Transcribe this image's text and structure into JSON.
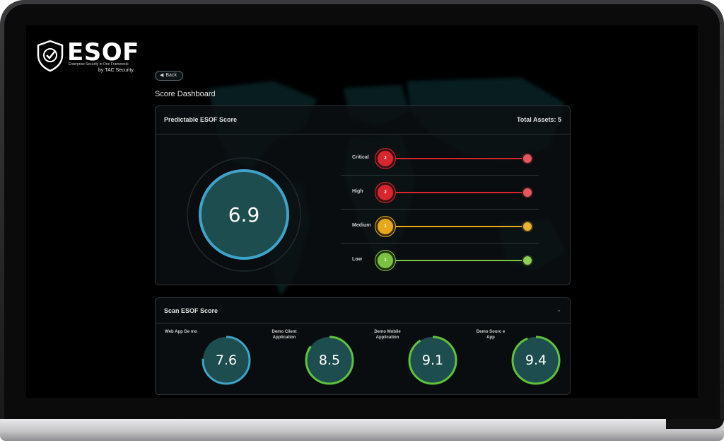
{
  "brand": {
    "name": "ESOF",
    "tagline": "Enterprise Security in One Framework",
    "by": "by TAC Security"
  },
  "nav": {
    "back_label": "Back"
  },
  "page": {
    "title": "Score Dashboard"
  },
  "predictable": {
    "title": "Predictable ESOF Score",
    "total_assets": "Total Assets: 5",
    "score": "6.9",
    "score_fraction": 0.69,
    "severities": [
      {
        "label": "Critical",
        "count": "2",
        "color": "#d9262e"
      },
      {
        "label": "High",
        "count": "2",
        "color": "#d9262e"
      },
      {
        "label": "Medium",
        "count": "1",
        "color": "#e5a919"
      },
      {
        "label": "Low",
        "count": "1",
        "color": "#7cc242"
      }
    ]
  },
  "scan": {
    "title": "Scan ESOF Score",
    "items": [
      {
        "name": "Web App De mo",
        "score": "7.6",
        "fraction": 0.76,
        "color": "#3fa3c9"
      },
      {
        "name": "Demo Client Application",
        "score": "8.5",
        "fraction": 0.85,
        "color": "#5fc23b"
      },
      {
        "name": "Demo Mobile Application",
        "score": "9.1",
        "fraction": 0.91,
        "color": "#5fc23b"
      },
      {
        "name": "Demo Sourc e App",
        "score": "9.4",
        "fraction": 0.94,
        "color": "#5fc23b"
      }
    ]
  },
  "colors": {
    "accent": "#3fa3c9",
    "gauge_fill": "#1d4d4e",
    "panel_border": "#2b3236"
  },
  "icons": {
    "back": "arrow-left-icon",
    "collapse": "chevron-down-icon",
    "logo": "shield-check-icon"
  }
}
